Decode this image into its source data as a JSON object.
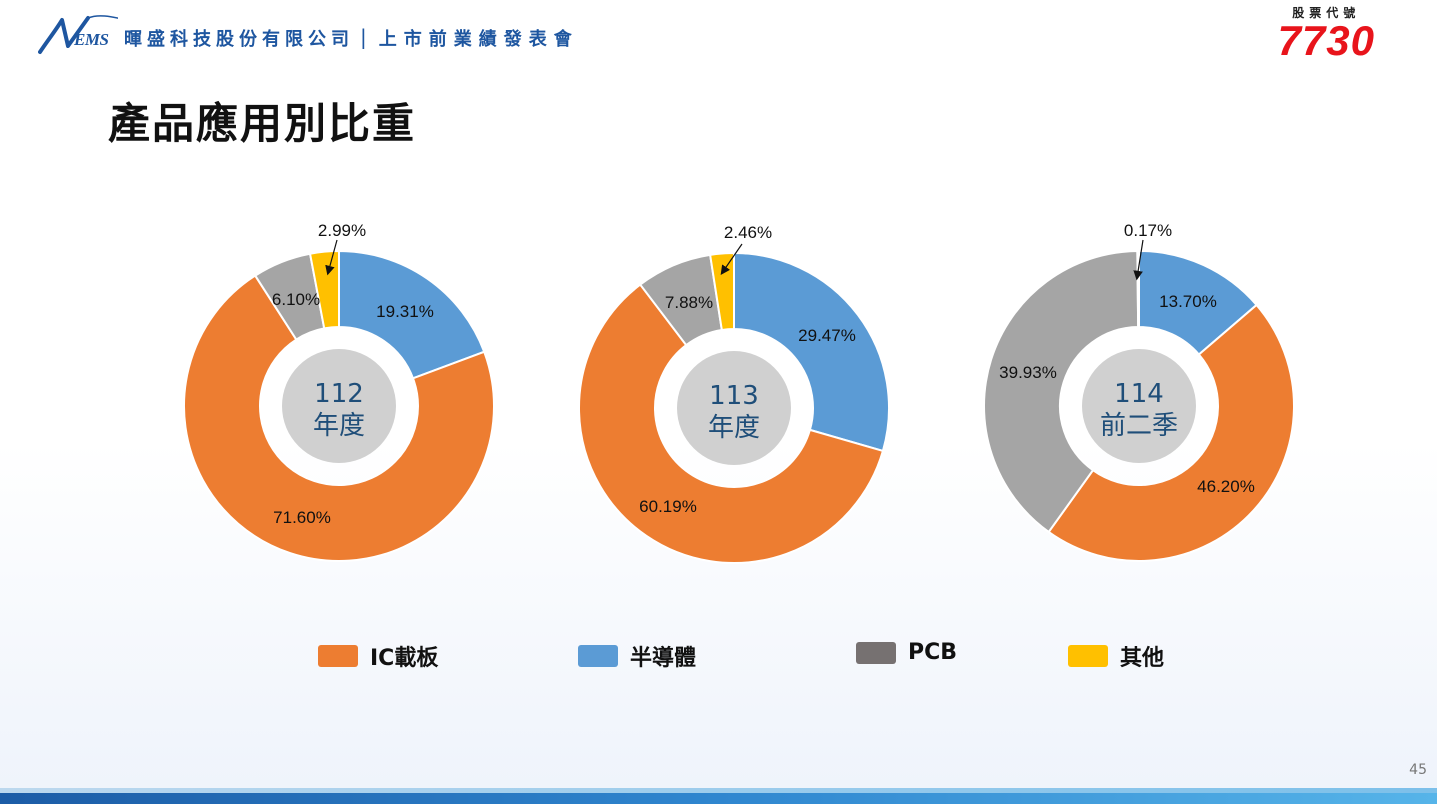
{
  "header": {
    "logo_text": "EMS",
    "company": "暉盛科技股份有限公司",
    "separator": "|",
    "event": "上市前業績發表會"
  },
  "stock": {
    "label": "股票代號",
    "code": "7730"
  },
  "page_title": "產品應用別比重",
  "page_number": "45",
  "colors": {
    "ic_substrate": "#ed7d31",
    "semiconductor": "#5b9bd5",
    "pcb_slice": "#a5a5a5",
    "pcb_legend": "#767171",
    "other": "#ffc000",
    "center_circle": "#d0d0d0",
    "center_text": "#1f4e79"
  },
  "legend": [
    {
      "label": "IC載板",
      "color": "#ed7d31"
    },
    {
      "label": "半導體",
      "color": "#5b9bd5"
    },
    {
      "label": "PCB",
      "color": "#767171"
    },
    {
      "label": "其他",
      "color": "#ffc000"
    }
  ],
  "chart_data": [
    {
      "type": "pie",
      "center_label": [
        "112",
        "年度"
      ],
      "categories": [
        "半導體",
        "IC載板",
        "PCB",
        "其他"
      ],
      "values": [
        19.31,
        71.6,
        6.1,
        2.99
      ],
      "labels": [
        "19.31%",
        "71.60%",
        "6.10%",
        "2.99%"
      ]
    },
    {
      "type": "pie",
      "center_label": [
        "113",
        "年度"
      ],
      "categories": [
        "半導體",
        "IC載板",
        "PCB",
        "其他"
      ],
      "values": [
        29.47,
        60.19,
        7.88,
        2.46
      ],
      "labels": [
        "29.47%",
        "60.19%",
        "7.88%",
        "2.46%"
      ]
    },
    {
      "type": "pie",
      "center_label": [
        "114",
        "前二季"
      ],
      "categories": [
        "半導體",
        "IC載板",
        "PCB",
        "其他"
      ],
      "values": [
        13.7,
        46.2,
        39.93,
        0.17
      ],
      "labels": [
        "13.70%",
        "46.20%",
        "39.93%",
        "0.17%"
      ]
    }
  ]
}
